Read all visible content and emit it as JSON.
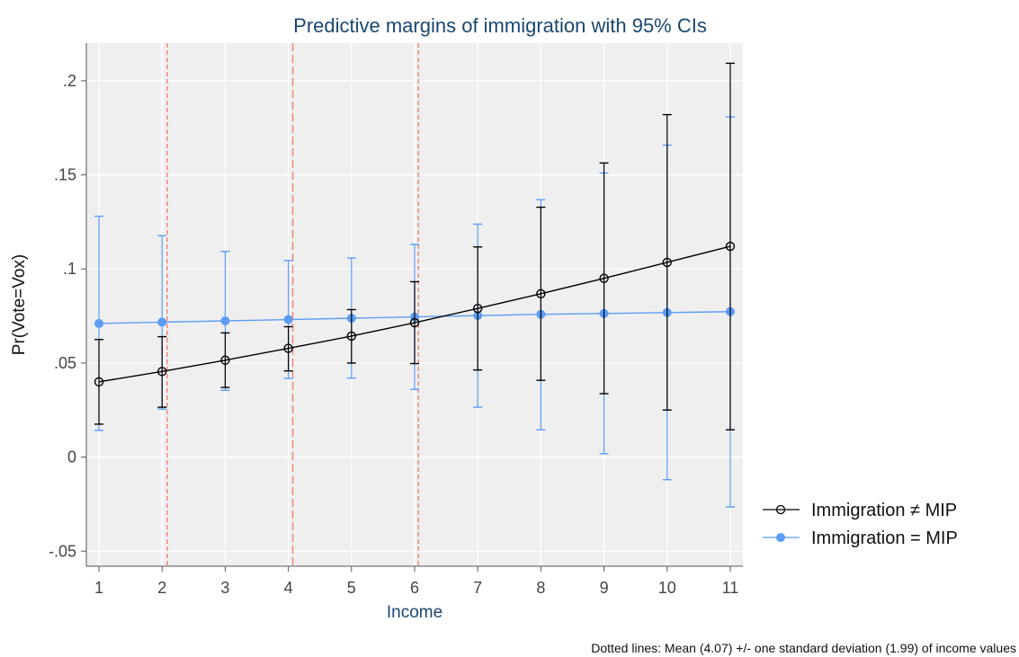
{
  "chart_data": {
    "type": "line",
    "title": "Predictive margins of immigration with 95% CIs",
    "xlabel": "Income",
    "ylabel": "Pr(Vote=Vox)",
    "x": [
      1,
      2,
      3,
      4,
      5,
      6,
      7,
      8,
      9,
      10,
      11
    ],
    "xlim": [
      0.8,
      11.2
    ],
    "ylim": [
      -0.058,
      0.22
    ],
    "x_ticks": [
      {
        "value": 1,
        "label": "1"
      },
      {
        "value": 2,
        "label": "2"
      },
      {
        "value": 3,
        "label": "3"
      },
      {
        "value": 4,
        "label": "4"
      },
      {
        "value": 5,
        "label": "5"
      },
      {
        "value": 6,
        "label": "6"
      },
      {
        "value": 7,
        "label": "7"
      },
      {
        "value": 8,
        "label": "8"
      },
      {
        "value": 9,
        "label": "9"
      },
      {
        "value": 10,
        "label": "10"
      },
      {
        "value": 11,
        "label": "11"
      }
    ],
    "y_ticks": [
      {
        "value": -0.05,
        "label": "-.05"
      },
      {
        "value": 0,
        "label": "0"
      },
      {
        "value": 0.05,
        "label": ".05"
      },
      {
        "value": 0.1,
        "label": ".1"
      },
      {
        "value": 0.15,
        "label": ".15"
      },
      {
        "value": 0.2,
        "label": ".2"
      }
    ],
    "grid": true,
    "legend_position": "right",
    "reference_lines": [
      {
        "x": 2.08,
        "style": "dotted"
      },
      {
        "x": 4.07,
        "style": "dashed"
      },
      {
        "x": 6.06,
        "style": "dotted"
      }
    ],
    "series": [
      {
        "name": "Immigration ≠ MIP",
        "color": "#000000",
        "marker": "hollow-circle",
        "values": [
          0.04,
          0.0455,
          0.0515,
          0.0578,
          0.0643,
          0.0714,
          0.079,
          0.0868,
          0.095,
          0.1035,
          0.112
        ],
        "lower": [
          0.0175,
          0.0265,
          0.037,
          0.0458,
          0.05,
          0.0497,
          0.0463,
          0.0408,
          0.0337,
          0.025,
          0.0145
        ],
        "upper": [
          0.0625,
          0.064,
          0.066,
          0.0693,
          0.0784,
          0.0932,
          0.1117,
          0.1328,
          0.1563,
          0.182,
          0.2093
        ]
      },
      {
        "name": "Immigration = MIP",
        "color": "#5c9cf5",
        "marker": "filled-circle",
        "values": [
          0.071,
          0.0717,
          0.0724,
          0.0731,
          0.0738,
          0.0745,
          0.0752,
          0.0759,
          0.0763,
          0.0768,
          0.0773
        ],
        "lower": [
          0.0142,
          0.0255,
          0.0355,
          0.0418,
          0.042,
          0.036,
          0.0265,
          0.0145,
          0.0018,
          -0.012,
          -0.0265
        ],
        "upper": [
          0.128,
          0.1177,
          0.1093,
          0.1045,
          0.1058,
          0.113,
          0.1238,
          0.1368,
          0.151,
          0.1658,
          0.1808
        ]
      }
    ],
    "note": "Dotted lines: Mean (4.07) +/- one standard deviation (1.99) of income values"
  },
  "colors": {
    "plot_background": "#efefef",
    "grid": "#ffffff",
    "reference_line": "#f08070",
    "title": "#1a476f",
    "xlabel": "#1a476f",
    "axis": "#555555"
  }
}
